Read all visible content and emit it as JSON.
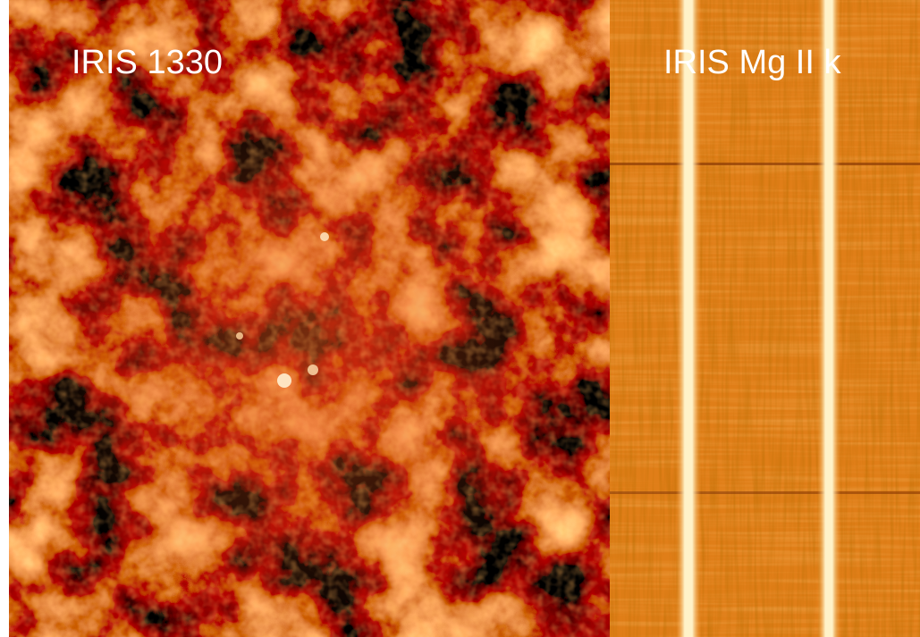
{
  "panels": [
    {
      "label": "IRIS 1330"
    },
    {
      "label": "IRIS Mg II k"
    }
  ]
}
